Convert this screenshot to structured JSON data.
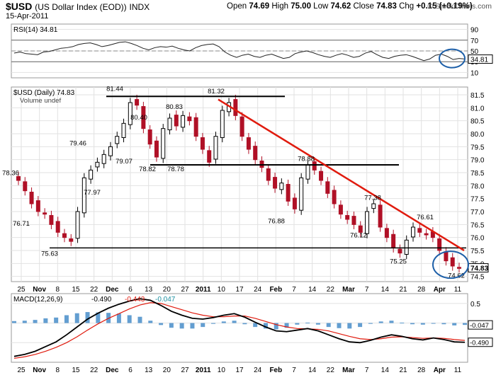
{
  "header": {
    "symbol": "$USD",
    "name": "(US Dollar Index (EOD))",
    "exchange": "INDX",
    "date": "15-Apr-2011",
    "open_label": "Open",
    "open": "74.69",
    "high_label": "High",
    "high": "75.00",
    "low_label": "Low",
    "low": "74.62",
    "close_label": "Close",
    "close": "74.83",
    "chg_label": "Chg",
    "chg": "+0.15 (+0.19%)",
    "brand": "© StockCharts.com"
  },
  "chart_data": [
    {
      "type": "line",
      "title": "RSI(14) 34.81",
      "ylim": [
        0,
        100
      ],
      "yticks": [
        10,
        30,
        50,
        70,
        90
      ],
      "reference_lines": [
        30,
        70
      ],
      "last_value": "34.81",
      "annotation": "circled latest RSI reading",
      "series": [
        {
          "values": [
            46,
            48,
            45,
            44,
            43,
            48,
            49,
            52,
            55,
            56,
            58,
            62,
            64,
            65,
            62,
            58,
            60,
            63,
            66,
            67,
            64,
            60,
            55,
            52,
            56,
            58,
            57,
            59,
            55,
            52,
            50,
            56,
            60,
            62,
            63,
            58,
            48,
            42,
            38,
            42,
            44,
            40,
            38,
            42,
            44,
            40,
            36,
            38,
            45,
            48,
            50,
            47,
            43,
            40,
            38,
            42,
            45,
            42,
            38,
            40,
            46,
            49,
            43,
            38,
            36,
            40,
            42,
            43,
            40,
            36,
            32,
            35,
            42,
            44,
            40,
            34,
            36,
            35
          ]
        }
      ]
    },
    {
      "type": "candlestick",
      "title": "$USD (Daily) 74.83",
      "legend": [
        "$USD (Daily) 74.83",
        "Volume undef"
      ],
      "ylim": [
        74.3,
        81.8
      ],
      "yticks": [
        "74.5",
        "75.0",
        "75.5",
        "76.0",
        "76.5",
        "77.0",
        "77.5",
        "78.0",
        "78.5",
        "79.0",
        "79.5",
        "80.0",
        "80.5",
        "81.0",
        "81.5"
      ],
      "xticks": [
        "25",
        "Nov",
        "8",
        "15",
        "22",
        "Dec",
        "6",
        "13",
        "20",
        "27",
        "2011",
        "10",
        "17",
        "24",
        "Feb",
        "7",
        "14",
        "22",
        "Mar",
        "7",
        "14",
        "21",
        "28",
        "Apr",
        "11"
      ],
      "last_price_label": "74.83",
      "close": [
        78.2,
        77.8,
        77.3,
        77.0,
        76.9,
        76.5,
        76.2,
        76.0,
        75.85,
        77.0,
        78.3,
        78.6,
        78.9,
        79.2,
        79.5,
        79.9,
        80.4,
        81.2,
        81.1,
        80.2,
        79.6,
        79.1,
        80.2,
        80.6,
        80.3,
        80.7,
        80.5,
        79.9,
        79.4,
        78.9,
        79.9,
        80.9,
        81.2,
        80.7,
        79.9,
        79.4,
        79.0,
        78.7,
        78.2,
        77.9,
        78.1,
        77.4,
        77.1,
        78.3,
        78.8,
        78.6,
        78.2,
        77.7,
        77.3,
        76.9,
        76.7,
        76.5,
        76.2,
        77.0,
        77.3,
        76.4,
        76.0,
        75.6,
        75.4,
        75.9,
        76.4,
        76.2,
        76.1,
        76.0,
        75.5,
        75.1,
        74.9,
        74.83
      ],
      "annotations": [
        {
          "text": "81.44",
          "kind": "peak"
        },
        {
          "text": "81.32",
          "kind": "peak"
        },
        {
          "text": "80.40",
          "kind": "swing"
        },
        {
          "text": "80.83",
          "kind": "swing"
        },
        {
          "text": "79.46",
          "kind": "swing"
        },
        {
          "text": "79.07",
          "kind": "swing"
        },
        {
          "text": "78.82",
          "kind": "swing"
        },
        {
          "text": "78.78",
          "kind": "swing"
        },
        {
          "text": "78.36",
          "kind": "swing"
        },
        {
          "text": "78.88",
          "kind": "swing"
        },
        {
          "text": "77.97",
          "kind": "swing"
        },
        {
          "text": "77.38",
          "kind": "swing"
        },
        {
          "text": "76.88",
          "kind": "swing"
        },
        {
          "text": "76.71",
          "kind": "swing"
        },
        {
          "text": "76.61",
          "kind": "swing"
        },
        {
          "text": "76.12",
          "kind": "swing"
        },
        {
          "text": "75.63",
          "kind": "trough"
        },
        {
          "text": "75.25",
          "kind": "trough"
        },
        {
          "text": "74.62",
          "kind": "trough"
        }
      ],
      "trend_lines": [
        {
          "kind": "horizontal",
          "color": "#000000",
          "y": 81.44
        },
        {
          "kind": "horizontal",
          "color": "#000000",
          "y": 78.8
        },
        {
          "kind": "horizontal",
          "color": "#000000",
          "y": 75.6
        },
        {
          "kind": "down-trend",
          "color": "#e01b0e",
          "from_y": 81.32,
          "to_y": 75.5
        }
      ]
    },
    {
      "type": "line",
      "title": "MACD(12,26,9)",
      "legend": [
        "MACD(12,26,9)",
        "-0.490",
        "-0.443",
        "-0.047"
      ],
      "ylim": [
        -1.0,
        0.75
      ],
      "yticks": [
        "0.5",
        "0.0",
        "-0.5"
      ],
      "last_values": {
        "macd": "-0.490",
        "histogram": "-0.047"
      },
      "series": [
        {
          "color": "#000000",
          "values": [
            -0.85,
            -0.8,
            -0.72,
            -0.6,
            -0.48,
            -0.3,
            -0.1,
            0.1,
            0.25,
            0.38,
            0.48,
            0.56,
            0.62,
            0.58,
            0.45,
            0.3,
            0.2,
            0.12,
            0.1,
            0.14,
            0.2,
            0.24,
            0.15,
            0.02,
            -0.1,
            -0.2,
            -0.22,
            -0.18,
            -0.14,
            -0.2,
            -0.3,
            -0.4,
            -0.48,
            -0.5,
            -0.44,
            -0.36,
            -0.3,
            -0.34,
            -0.4,
            -0.43,
            -0.38,
            -0.42,
            -0.48,
            -0.49
          ]
        },
        {
          "color": "#e01b0e",
          "values": [
            -0.9,
            -0.86,
            -0.8,
            -0.72,
            -0.62,
            -0.5,
            -0.35,
            -0.18,
            -0.02,
            0.12,
            0.24,
            0.36,
            0.46,
            0.52,
            0.5,
            0.42,
            0.34,
            0.26,
            0.2,
            0.16,
            0.16,
            0.18,
            0.18,
            0.12,
            0.04,
            -0.04,
            -0.1,
            -0.14,
            -0.15,
            -0.16,
            -0.2,
            -0.27,
            -0.34,
            -0.4,
            -0.42,
            -0.4,
            -0.36,
            -0.35,
            -0.37,
            -0.39,
            -0.38,
            -0.39,
            -0.42,
            -0.443
          ]
        }
      ]
    }
  ],
  "colors": {
    "up": "#000000",
    "down": "#b01026",
    "trend": "#e01b0e",
    "macd": "#000000",
    "signal": "#e01b0e",
    "histogram": "#2f7ec2",
    "circle": "#1d5fa8",
    "grid": "#e2e2e2"
  }
}
